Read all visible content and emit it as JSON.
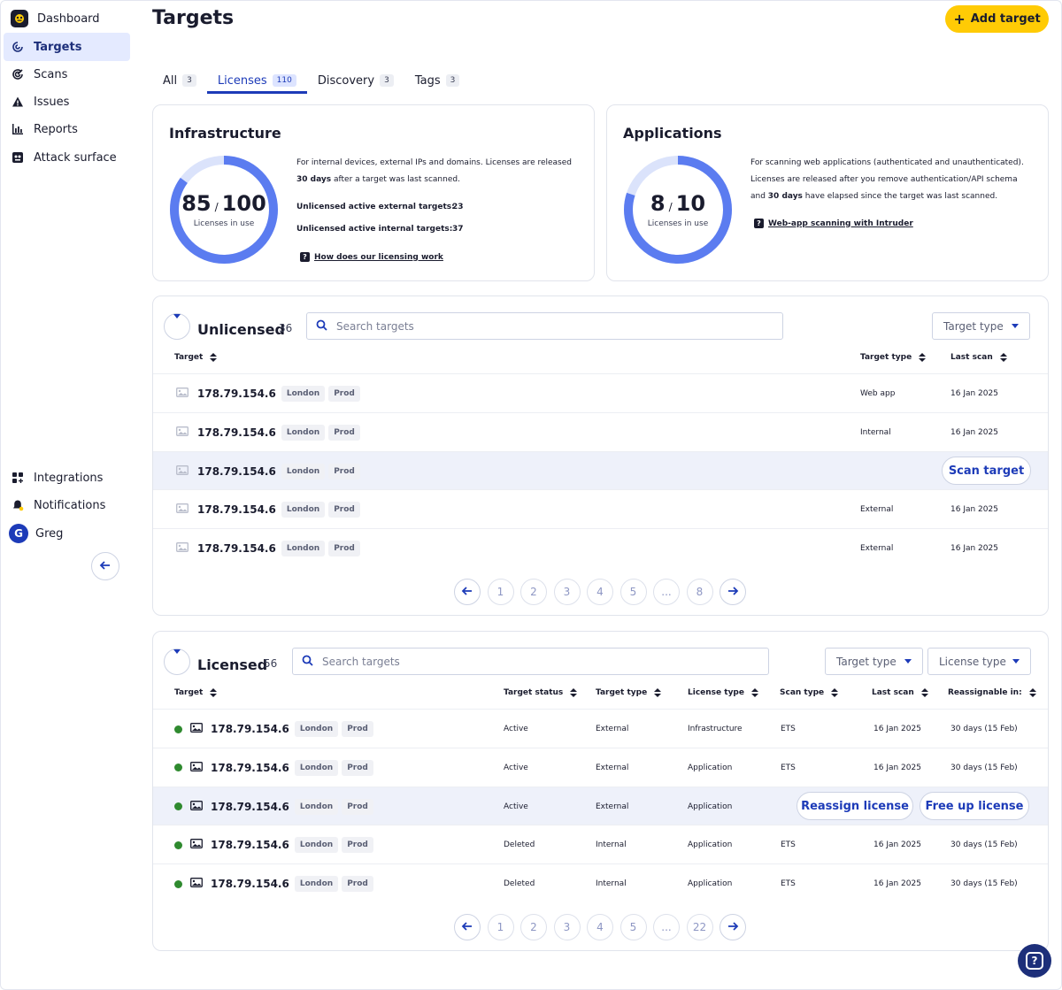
{
  "sidebar": {
    "top_items": [
      {
        "label": "Dashboard",
        "icon": "logo-icon"
      },
      {
        "label": "Targets",
        "icon": "target-icon",
        "active": true
      },
      {
        "label": "Scans",
        "icon": "radar-icon"
      },
      {
        "label": "Issues",
        "icon": "warning-icon"
      },
      {
        "label": "Reports",
        "icon": "bar-chart-icon"
      },
      {
        "label": "Attack surface",
        "icon": "attack-surface-icon"
      }
    ],
    "bottom_items": [
      {
        "label": "Integrations",
        "icon": "grid-plus-icon"
      },
      {
        "label": "Notifications",
        "icon": "bell-icon"
      },
      {
        "label": "Greg",
        "avatar_letter": "G"
      }
    ]
  },
  "header": {
    "title": "Targets",
    "add_button": "Add target"
  },
  "tabs": [
    {
      "label": "All",
      "count": "3"
    },
    {
      "label": "Licenses",
      "count": "110",
      "active": true
    },
    {
      "label": "Discovery",
      "count": "3"
    },
    {
      "label": "Tags",
      "count": "3"
    }
  ],
  "infrastructure": {
    "title": "Infrastructure",
    "used": "85",
    "total": "100",
    "caption": "Licenses in use",
    "desc_pre": "For internal devices, external IPs and domains. Licenses are released ",
    "desc_bold": "30 days",
    "desc_post": " after a target was last scanned.",
    "stat1_label": "Unlicensed active external targets:",
    "stat1_value": "23",
    "stat2_label": "Unlicensed active internal targets:",
    "stat2_value": "37",
    "help_link": "How does our licensing work",
    "fill_fraction": 0.85
  },
  "applications": {
    "title": "Applications",
    "used": "8",
    "total": "10",
    "caption": "Licenses in use",
    "desc_pre": "For scanning web applications (authenticated and unauthenticated). Licenses are released after you remove authentication/API schema and ",
    "desc_bold": "30 days",
    "desc_post": " have elapsed since the target was last scanned.",
    "help_link": "Web-app scanning with Intruder",
    "fill_fraction": 0.8
  },
  "unlicensed": {
    "title": "Unlicensed",
    "count": "36",
    "search_placeholder": "Search targets",
    "filter_target_type": "Target type",
    "columns": {
      "target": "Target",
      "target_type": "Target type",
      "last_scan": "Last scan"
    },
    "rows": [
      {
        "ip": "178.79.154.6",
        "tags": [
          "London",
          "Prod"
        ],
        "type": "Web app",
        "last_scan": "16 Jan 2025"
      },
      {
        "ip": "178.79.154.6",
        "tags": [
          "London",
          "Prod"
        ],
        "type": "Internal",
        "last_scan": "16 Jan 2025"
      },
      {
        "ip": "178.79.154.6",
        "tags": [
          "London",
          "Prod"
        ],
        "type": "",
        "last_scan": "",
        "highlight": true
      },
      {
        "ip": "178.79.154.6",
        "tags": [
          "London",
          "Prod"
        ],
        "type": "External",
        "last_scan": "16 Jan 2025"
      },
      {
        "ip": "178.79.154.6",
        "tags": [
          "London",
          "Prod"
        ],
        "type": "External",
        "last_scan": "16 Jan 2025"
      }
    ],
    "scan_button": "Scan target",
    "pages": [
      "1",
      "2",
      "3",
      "4",
      "5",
      "...",
      "8"
    ]
  },
  "licensed": {
    "title": "Licensed",
    "count": "56",
    "search_placeholder": "Search targets",
    "filter_target_type": "Target type",
    "filter_license_type": "License type",
    "columns": {
      "target": "Target",
      "target_status": "Target status",
      "target_type": "Target type",
      "license_type": "License type",
      "scan_type": "Scan type",
      "last_scan": "Last scan",
      "reassignable": "Reassignable in:"
    },
    "rows": [
      {
        "ip": "178.79.154.6",
        "tags": [
          "London",
          "Prod"
        ],
        "status": "Active",
        "type": "External",
        "license": "Infrastructure",
        "scan_type": "ETS",
        "last_scan": "16 Jan 2025",
        "reassign": "30 days (15 Feb)"
      },
      {
        "ip": "178.79.154.6",
        "tags": [
          "London",
          "Prod"
        ],
        "status": "Active",
        "type": "External",
        "license": "Application",
        "scan_type": "ETS",
        "last_scan": "16 Jan 2025",
        "reassign": "30 days (15 Feb)"
      },
      {
        "ip": "178.79.154.6",
        "tags": [
          "London",
          "Prod"
        ],
        "status": "Active",
        "type": "External",
        "license": "Application",
        "scan_type": "",
        "last_scan": "",
        "reassign": "",
        "highlight": true
      },
      {
        "ip": "178.79.154.6",
        "tags": [
          "London",
          "Prod"
        ],
        "status": "Deleted",
        "type": "Internal",
        "license": "Application",
        "scan_type": "ETS",
        "last_scan": "16 Jan 2025",
        "reassign": "30 days (15 Feb)"
      },
      {
        "ip": "178.79.154.6",
        "tags": [
          "London",
          "Prod"
        ],
        "status": "Deleted",
        "type": "Internal",
        "license": "Application",
        "scan_type": "ETS",
        "last_scan": "16 Jan 2025",
        "reassign": "30 days (15 Feb)"
      }
    ],
    "reassign_button": "Reassign license",
    "free_button": "Free up license",
    "pages": [
      "1",
      "2",
      "3",
      "4",
      "5",
      "...",
      "22"
    ]
  },
  "colors": {
    "accent": "#1d3bb8",
    "brand_yellow": "#ffcb05",
    "donut_fill": "#5b7cf0",
    "donut_track": "#dbe3fb",
    "status_active": "#2f8a2f"
  }
}
